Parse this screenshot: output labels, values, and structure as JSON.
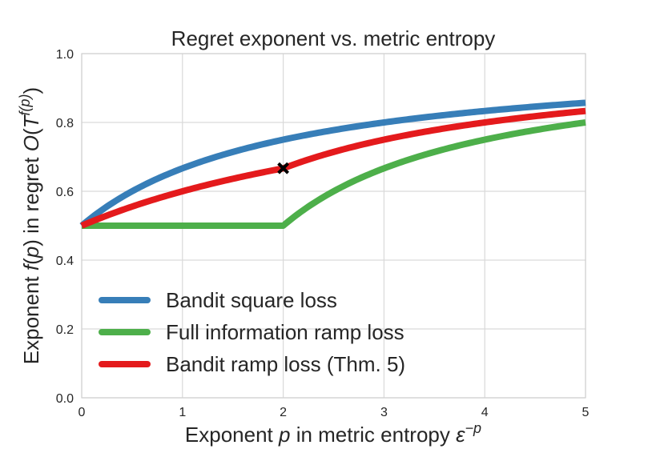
{
  "chart_data": {
    "type": "line",
    "title": "Regret exponent vs. metric entropy",
    "xlabel": "Exponent p in metric entropy ε^{-p}",
    "ylabel": "Exponent f(p) in regret O(T^{f(p)})",
    "xlim": [
      0,
      5
    ],
    "ylim": [
      0.0,
      1.0
    ],
    "xticks": [
      "0",
      "1",
      "2",
      "3",
      "4",
      "5"
    ],
    "yticks": [
      "0.0",
      "0.2",
      "0.4",
      "0.6",
      "0.8",
      "1.0"
    ],
    "grid": true,
    "legend_position": "lower left",
    "x": [
      0,
      0.5,
      1,
      1.5,
      2,
      2.5,
      3,
      3.5,
      4,
      4.5,
      5
    ],
    "series": [
      {
        "name": "Bandit square loss",
        "color": "#377eb8",
        "values": [
          0.5,
          0.6,
          0.667,
          0.714,
          0.75,
          0.778,
          0.8,
          0.818,
          0.833,
          0.846,
          0.857
        ]
      },
      {
        "name": "Full information ramp loss",
        "color": "#4daf4a",
        "values": [
          0.5,
          0.5,
          0.5,
          0.5,
          0.5,
          0.6,
          0.667,
          0.714,
          0.75,
          0.778,
          0.8
        ]
      },
      {
        "name": "Bandit ramp loss (Thm. 5)",
        "color": "#e41a1c",
        "values": [
          0.5,
          0.556,
          0.6,
          0.636,
          0.667,
          0.714,
          0.75,
          0.778,
          0.8,
          0.818,
          0.833
        ]
      }
    ],
    "annotations": [
      {
        "type": "marker",
        "symbol": "x",
        "x": 2,
        "y": 0.667,
        "color": "#000000"
      }
    ]
  },
  "labels": {
    "title": "Regret exponent vs. metric entropy",
    "xlabel_pre": "Exponent ",
    "xlabel_var": "p",
    "xlabel_post": " in metric entropy ",
    "xlabel_eps": "ε",
    "xlabel_sup": "−p",
    "ylabel_pre": "Exponent ",
    "ylabel_f": "f",
    "ylabel_mid": "(",
    "ylabel_p": "p",
    "ylabel_mid2": ") in regret ",
    "ylabel_O": "O",
    "ylabel_paren": "(",
    "ylabel_T": "T",
    "ylabel_sup": "f(p)",
    "ylabel_close": ")",
    "legend": [
      "Bandit square loss",
      "Full information ramp loss",
      "Bandit ramp loss (Thm. 5)"
    ]
  }
}
